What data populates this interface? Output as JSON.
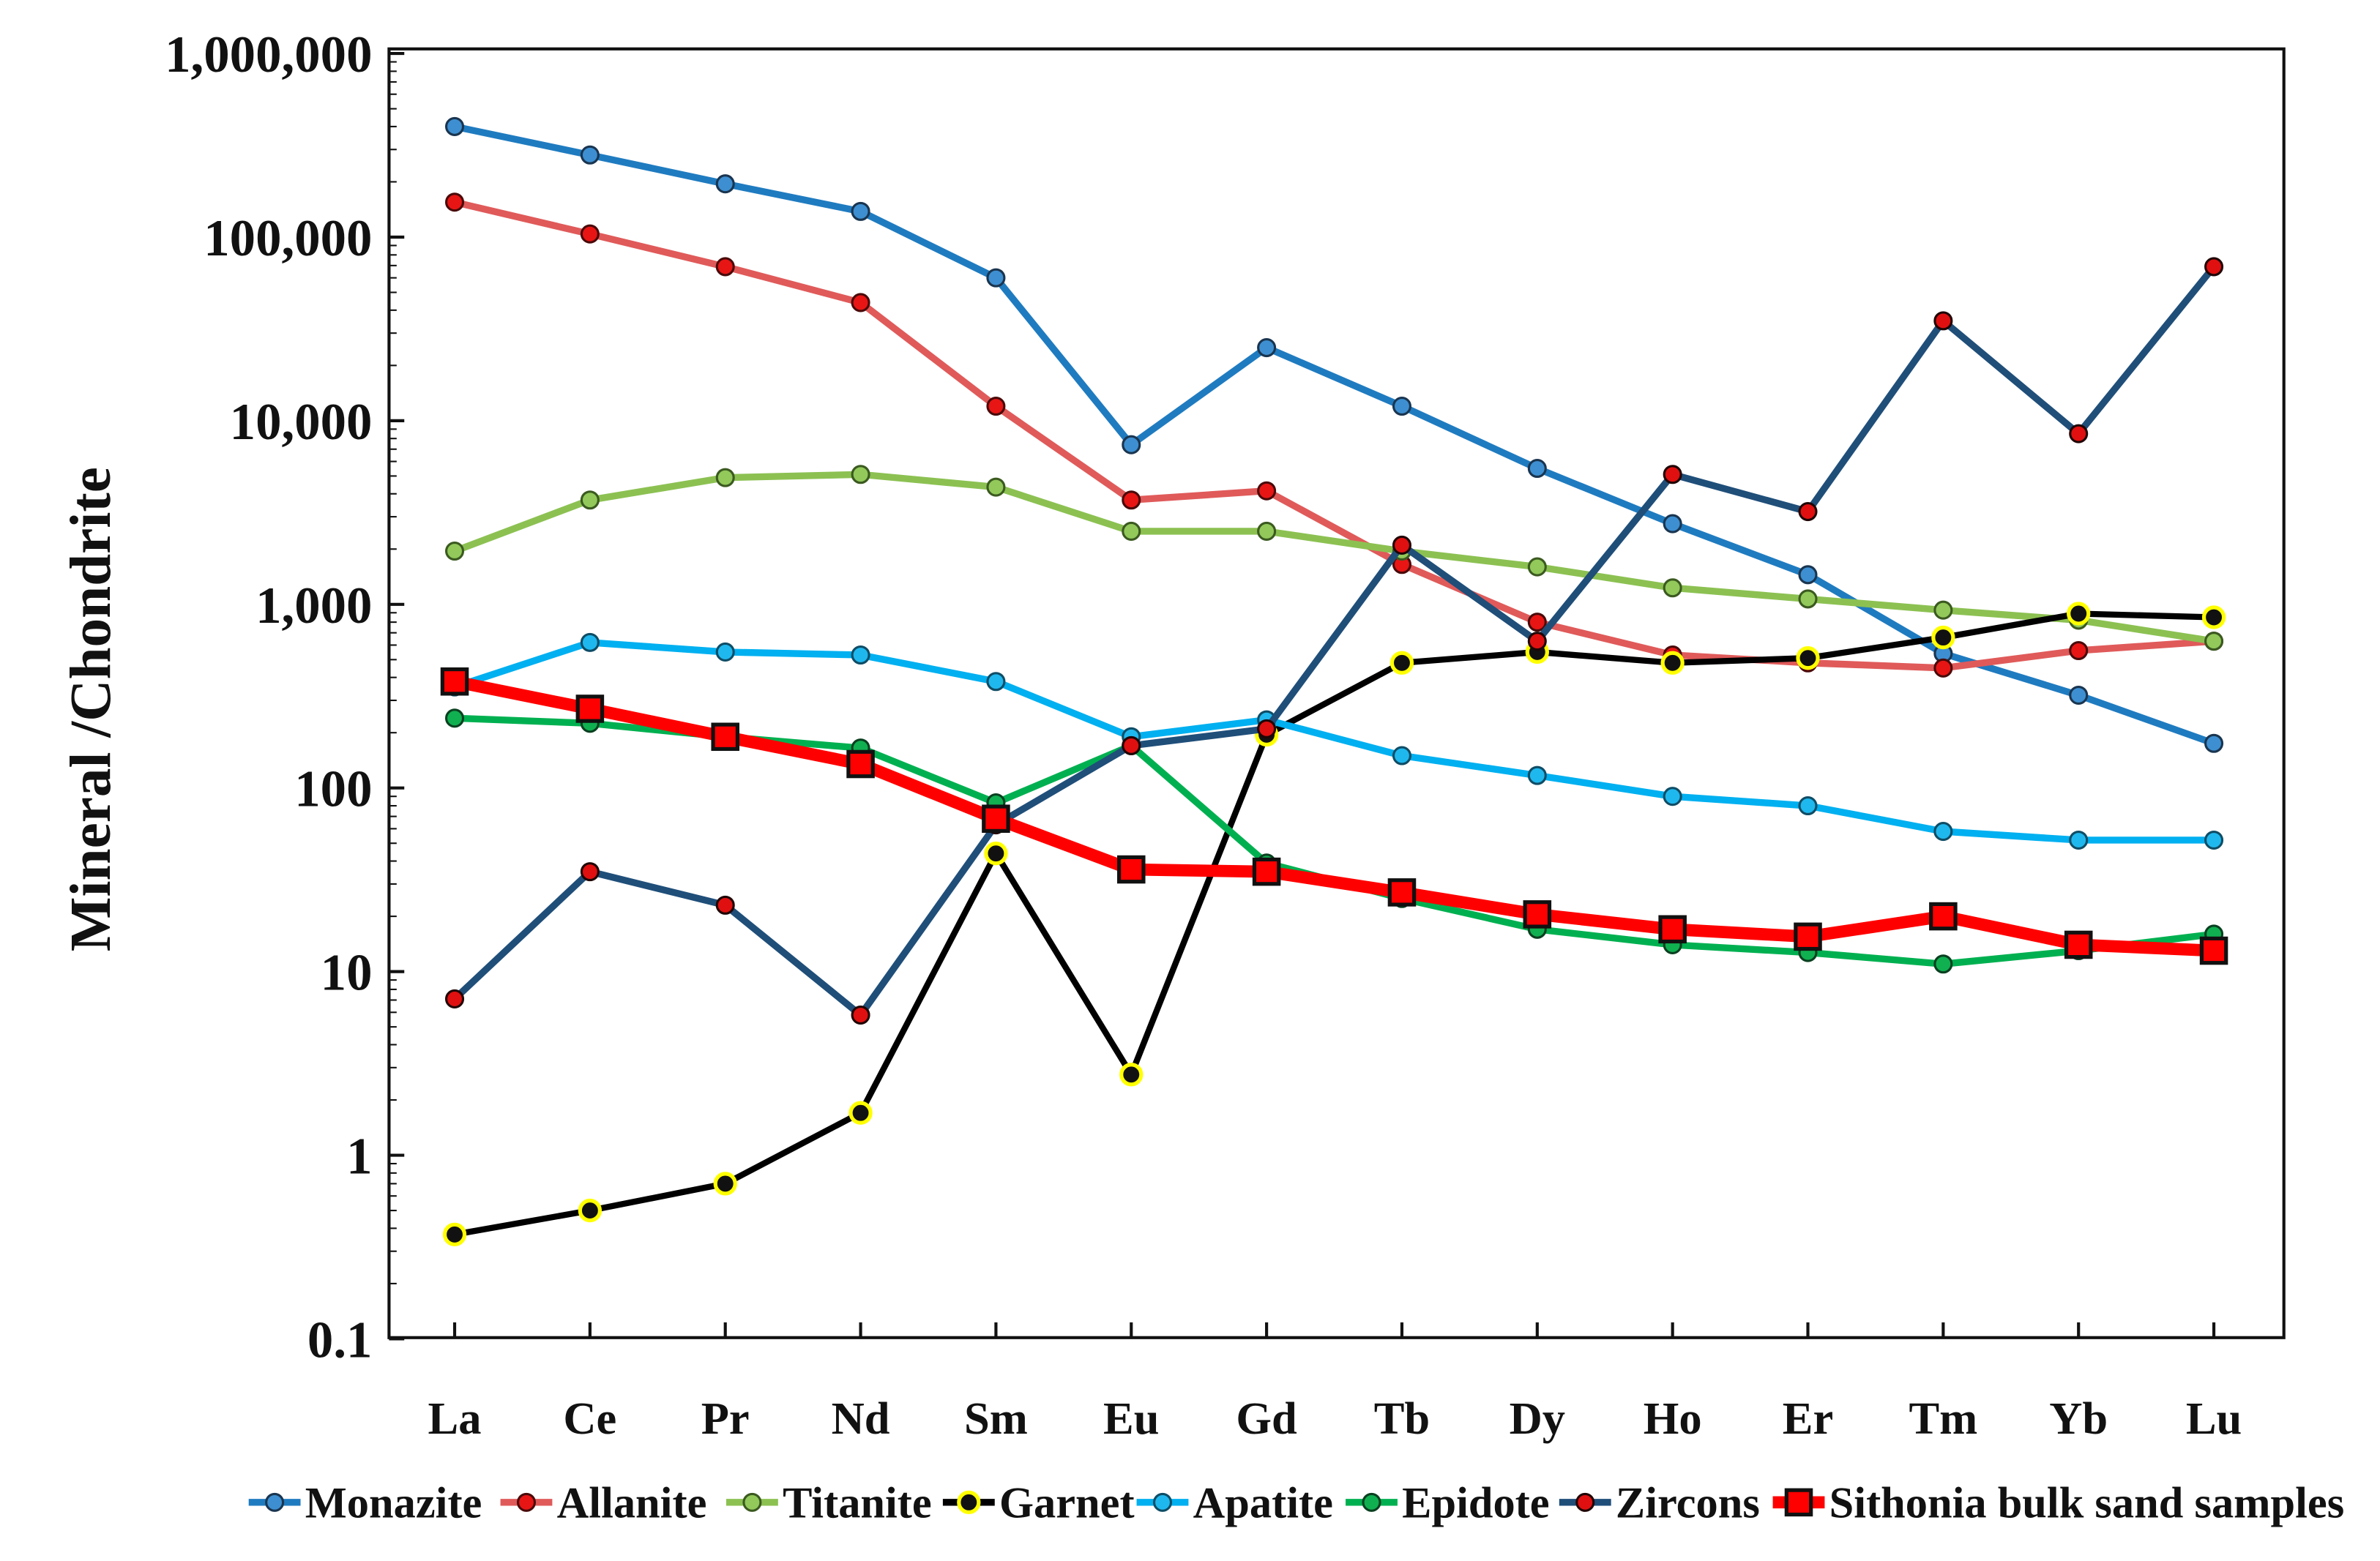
{
  "chart_data": {
    "type": "line",
    "title": "",
    "xlabel": "",
    "ylabel": "Mineral /Chondrite",
    "yscale": "log",
    "ylim": [
      0.1,
      1000000
    ],
    "yticks": [
      {
        "value": 1000000,
        "label": "1,000,000"
      },
      {
        "value": 100000,
        "label": "100,000"
      },
      {
        "value": 10000,
        "label": "10,000"
      },
      {
        "value": 1000,
        "label": "1,000"
      },
      {
        "value": 100,
        "label": "100"
      },
      {
        "value": 10,
        "label": "10"
      },
      {
        "value": 1,
        "label": "1"
      },
      {
        "value": 0.1,
        "label": "0.1"
      }
    ],
    "grid": false,
    "legend_position": "bottom",
    "categories": [
      "La",
      "Ce",
      "Pr",
      "Nd",
      "Sm",
      "Eu",
      "Gd",
      "Tb",
      "Dy",
      "Ho",
      "Er",
      "Tm",
      "Yb",
      "Lu"
    ],
    "series": [
      {
        "name": "Monazite",
        "line_color": "#1f7bc0",
        "marker": "circle",
        "marker_fill": "#3d8fd1",
        "marker_stroke": "#1a3550",
        "values": [
          400000,
          280000,
          195000,
          138000,
          60000,
          7400,
          25000,
          12000,
          5500,
          2750,
          1450,
          540,
          320,
          175
        ]
      },
      {
        "name": "Allanite",
        "line_color": "#e05a5a",
        "marker": "circle",
        "marker_fill": "#e81515",
        "marker_stroke": "#4a0a0a",
        "values": [
          155000,
          104000,
          69000,
          44000,
          12000,
          3700,
          4150,
          1650,
          800,
          530,
          480,
          450,
          560,
          630
        ]
      },
      {
        "name": "Titanite",
        "line_color": "#8cc152",
        "marker": "circle",
        "marker_fill": "#92c95a",
        "marker_stroke": "#3b5a20",
        "values": [
          1950,
          3700,
          4900,
          5100,
          4350,
          2500,
          2500,
          1950,
          1600,
          1230,
          1070,
          930,
          820,
          630
        ]
      },
      {
        "name": "Garnet",
        "line_color": "#000000",
        "marker": "circle",
        "marker_fill": "#111111",
        "marker_stroke": "#ffff00",
        "values": [
          0.37,
          0.5,
          0.7,
          1.7,
          44,
          2.75,
          195,
          480,
          550,
          480,
          510,
          660,
          890,
          850
        ]
      },
      {
        "name": "Apatite",
        "line_color": "#00b0f0",
        "marker": "circle",
        "marker_fill": "#1fb8ee",
        "marker_stroke": "#0f4d66",
        "values": [
          355,
          620,
          550,
          530,
          380,
          190,
          235,
          150,
          117,
          90,
          80,
          58,
          52,
          52
        ]
      },
      {
        "name": "Epidote",
        "line_color": "#00b050",
        "marker": "circle",
        "marker_fill": "#10b050",
        "marker_stroke": "#0a4020",
        "values": [
          240,
          225,
          190,
          165,
          83,
          170,
          39,
          25,
          17,
          14,
          12.7,
          11,
          13,
          16
        ]
      },
      {
        "name": "Zircons",
        "line_color": "#1f4e79",
        "marker": "circle",
        "marker_fill": "#e01010",
        "marker_stroke": "#200505",
        "values": [
          7.1,
          35,
          23,
          5.8,
          63,
          170,
          210,
          2100,
          630,
          5100,
          3200,
          35000,
          8500,
          69000
        ]
      },
      {
        "name": "Sithonia bulk sand samples",
        "line_color": "#ff0000",
        "marker": "square",
        "marker_fill": "#ff0000",
        "marker_stroke": "#111111",
        "values": [
          380,
          270,
          190,
          135,
          68,
          36,
          35,
          27,
          20.5,
          17,
          15.5,
          20,
          14,
          13
        ]
      }
    ]
  }
}
